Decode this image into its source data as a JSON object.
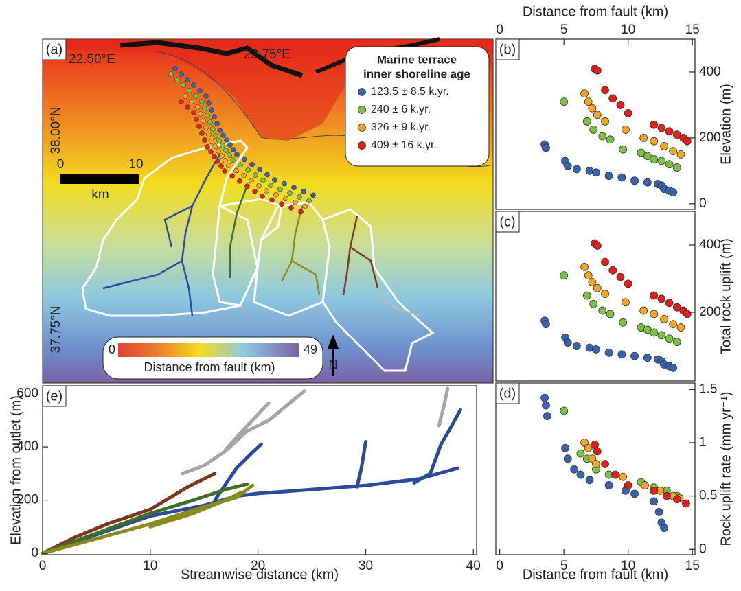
{
  "map": {
    "panel_label": "(a)",
    "lon_labels": [
      "22.50°E",
      "22.75°E"
    ],
    "lat_labels": [
      "38.00°N",
      "37.75°N"
    ],
    "scale_bar": {
      "start": "0",
      "end": "10",
      "unit": "km"
    },
    "legend": {
      "title": [
        "Marine terrace",
        "inner shoreline age"
      ],
      "items": [
        {
          "label": "123.5 ± 8.5 k.yr.",
          "color": "#3b62ad"
        },
        {
          "label": "240 ± 6 k.yr.",
          "color": "#7cc242"
        },
        {
          "label": "326 ± 9 k.yr.",
          "color": "#f5a623"
        },
        {
          "label": "409 ± 16 k.yr.",
          "color": "#e0201b"
        }
      ]
    },
    "colorbar": {
      "min": 0,
      "max": 49,
      "label": "Distance from fault (km)"
    },
    "north": "N"
  },
  "chart_data": [
    {
      "type": "scatter",
      "panel_label": "(b)",
      "xlabel": "Distance from fault (km)",
      "ylabel": "Elevation (m)",
      "xlim": [
        -0.3,
        15.2
      ],
      "xticks": [
        0,
        5,
        10,
        15
      ],
      "ylim": [
        -17,
        500
      ],
      "yticks": [
        0,
        200,
        400
      ],
      "series": [
        {
          "color": "#3b62ad",
          "x": [
            3.5,
            3.6,
            5.1,
            5.3,
            6,
            7,
            7.5,
            8.5,
            9.5,
            10.5,
            11.5,
            12.3,
            12.6,
            12.8,
            13.2,
            13.5
          ],
          "values": [
            180,
            170,
            130,
            115,
            105,
            100,
            95,
            85,
            80,
            70,
            65,
            60,
            55,
            45,
            40,
            35
          ]
        },
        {
          "color": "#7cc242",
          "x": [
            5,
            6.8,
            7.3,
            8,
            8.6,
            9.6,
            11,
            11.5,
            12,
            12.6,
            13.2,
            13.8
          ],
          "values": [
            310,
            250,
            225,
            205,
            195,
            165,
            155,
            145,
            135,
            130,
            120,
            110
          ]
        },
        {
          "color": "#f5a623",
          "x": [
            6.6,
            6.9,
            7.2,
            7.6,
            8.2,
            9.8,
            11.2,
            12,
            12.8,
            13.5,
            14.1
          ],
          "values": [
            335,
            310,
            290,
            270,
            250,
            225,
            200,
            190,
            175,
            160,
            150
          ]
        },
        {
          "color": "#e0201b",
          "x": [
            7.4,
            7.6,
            8.2,
            8.8,
            9.4,
            10,
            12,
            12.6,
            13.2,
            13.8,
            14.3,
            14.6
          ],
          "values": [
            410,
            405,
            345,
            320,
            300,
            275,
            240,
            230,
            220,
            210,
            200,
            190
          ]
        }
      ]
    },
    {
      "type": "scatter",
      "panel_label": "(c)",
      "ylabel": "Total rock uplift (m)",
      "xlim": [
        -0.3,
        15.2
      ],
      "ylim": [
        -4,
        500
      ],
      "yticks": [
        200,
        400
      ],
      "series": [
        {
          "color": "#3b62ad",
          "x": [
            3.5,
            3.6,
            5.1,
            5.3,
            6,
            7,
            7.5,
            8.5,
            9.5,
            10.5,
            11.5,
            12.3,
            12.6,
            12.8,
            13.2,
            13.5
          ],
          "values": [
            175,
            165,
            125,
            110,
            100,
            95,
            90,
            80,
            75,
            70,
            65,
            60,
            55,
            45,
            40,
            35
          ]
        },
        {
          "color": "#7cc242",
          "x": [
            5,
            6.8,
            7.3,
            8,
            8.6,
            9.6,
            11,
            11.5,
            12,
            12.6,
            13.2,
            13.8
          ],
          "values": [
            310,
            250,
            225,
            205,
            195,
            170,
            155,
            148,
            140,
            132,
            122,
            112
          ]
        },
        {
          "color": "#f5a623",
          "x": [
            6.6,
            6.9,
            7.2,
            7.6,
            8.2,
            9.8,
            11.2,
            12,
            12.8,
            13.5,
            14.1
          ],
          "values": [
            335,
            310,
            290,
            272,
            255,
            230,
            205,
            195,
            180,
            165,
            155
          ]
        },
        {
          "color": "#e0201b",
          "x": [
            7.4,
            7.6,
            8.2,
            8.8,
            9.4,
            10,
            12,
            12.6,
            13.2,
            13.8,
            14.3,
            14.6
          ],
          "values": [
            405,
            398,
            350,
            325,
            305,
            285,
            250,
            240,
            228,
            215,
            205,
            195
          ]
        }
      ]
    },
    {
      "type": "scatter",
      "panel_label": "(d)",
      "xlabel": "Distance from fault (km)",
      "ylabel": "Rock uplift rate (mm yr⁻¹)",
      "xlim": [
        -0.3,
        15.2
      ],
      "xticks": [
        0,
        5,
        10,
        15
      ],
      "ylim": [
        -0.05,
        1.56
      ],
      "yticks": [
        0,
        0.5,
        1,
        {
          "value": 1.5,
          "label": "1.5"
        }
      ],
      "series": [
        {
          "color": "#3b62ad",
          "x": [
            3.5,
            3.6,
            3.7,
            5.1,
            5.3,
            5.8,
            6.3,
            7,
            8.5,
            9.8,
            10.5,
            12,
            12.4,
            12.6,
            12.8
          ],
          "values": [
            1.42,
            1.35,
            1.25,
            0.95,
            0.85,
            0.75,
            0.7,
            0.65,
            0.6,
            0.55,
            0.52,
            0.45,
            0.35,
            0.25,
            0.2
          ]
        },
        {
          "color": "#7cc242",
          "x": [
            5,
            6.3,
            6.8,
            7.5,
            8.5,
            11,
            12,
            13,
            13.8
          ],
          "values": [
            1.3,
            0.9,
            0.85,
            0.75,
            0.7,
            0.63,
            0.58,
            0.55,
            0.5
          ]
        },
        {
          "color": "#f5a623",
          "x": [
            6.6,
            6.9,
            7.2,
            7.5,
            9.6,
            11.3,
            12.5,
            13.5,
            14
          ],
          "values": [
            1.0,
            0.95,
            0.85,
            0.8,
            0.68,
            0.6,
            0.55,
            0.5,
            0.48
          ]
        },
        {
          "color": "#e0201b",
          "x": [
            7.4,
            7.6,
            8.2,
            9,
            10,
            12,
            13,
            13.8,
            14.5
          ],
          "values": [
            0.98,
            0.92,
            0.8,
            0.7,
            0.6,
            0.55,
            0.5,
            0.47,
            0.43
          ]
        }
      ]
    },
    {
      "type": "line",
      "panel_label": "(e)",
      "xlabel": "Streamwise distance (km)",
      "ylabel": "Elevation from outlet (m)",
      "xlim": [
        0,
        40.3
      ],
      "xticks": [
        0,
        10,
        20,
        30,
        40
      ],
      "ylim": [
        -5,
        630
      ],
      "yticks": [
        0,
        200,
        400,
        600
      ],
      "series": [
        {
          "color": "#a6a6a6",
          "x": [
            13,
            15,
            17,
            19,
            21,
            24.3
          ],
          "values": [
            300,
            330,
            385,
            460,
            500,
            610
          ]
        },
        {
          "color": "#a6a6a6",
          "x": [
            17,
            19,
            21
          ],
          "values": [
            390,
            480,
            565
          ]
        },
        {
          "color": "#a6a6a6",
          "x": [
            36.8,
            37.3,
            37.6
          ],
          "values": [
            480,
            560,
            620
          ]
        },
        {
          "color": "#2a4a9a",
          "x": [
            0,
            5,
            10,
            15,
            18,
            20,
            25,
            30,
            35,
            38.5
          ],
          "values": [
            0,
            70,
            140,
            180,
            215,
            225,
            240,
            255,
            280,
            320
          ]
        },
        {
          "color": "#2a4a9a",
          "x": [
            29.2,
            29.6,
            30
          ],
          "values": [
            250,
            320,
            420
          ]
        },
        {
          "color": "#2a4a9a",
          "x": [
            34.5,
            36,
            37,
            38,
            38.8
          ],
          "values": [
            265,
            300,
            410,
            480,
            540
          ]
        },
        {
          "color": "#2a4a9a",
          "x": [
            16,
            18,
            19.5,
            20.3
          ],
          "values": [
            200,
            320,
            380,
            410
          ]
        },
        {
          "color": "#7a3a22",
          "x": [
            0,
            3,
            6,
            10,
            13.5,
            16
          ],
          "values": [
            0,
            60,
            110,
            165,
            250,
            300
          ]
        },
        {
          "color": "#3f6e2a",
          "x": [
            0,
            5,
            10,
            14,
            17,
            19
          ],
          "values": [
            0,
            75,
            150,
            200,
            240,
            260
          ]
        },
        {
          "color": "#8a8a1e",
          "x": [
            0,
            5,
            10,
            15,
            18,
            19.5
          ],
          "values": [
            0,
            55,
            110,
            175,
            210,
            255
          ]
        },
        {
          "color": "#8a8a1e",
          "x": [
            10,
            14,
            17,
            18.5
          ],
          "values": [
            100,
            150,
            200,
            230
          ]
        }
      ]
    }
  ]
}
